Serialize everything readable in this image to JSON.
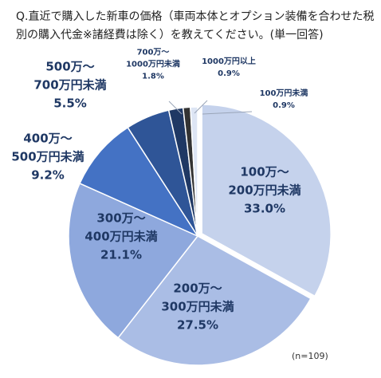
{
  "question": "Q.直近で購入した新車の価格（車両本体とオプション装備を合わせた税別の購入代金※諸経費は除く）を教えてください。(単一回答)",
  "note": "(n=109)",
  "chart_data": {
    "type": "pie",
    "title": "Q.直近で購入した新車の価格（車両本体とオプション装備を合わせた税別の購入代金※諸経費は除く）を教えてください。(単一回答)",
    "n": 109,
    "start": "12 o'clock",
    "direction": "clockwise",
    "slices": [
      {
        "label_lines": [
          "100万～",
          "200万円未満"
        ],
        "label": "100万～200万円未満",
        "percent_label": "33.0%",
        "value": 33.0,
        "color": "#c5d2ec",
        "text_color": "#1f3864"
      },
      {
        "label_lines": [
          "200万～",
          "300万円未満"
        ],
        "label": "200万～300万円未満",
        "percent_label": "27.5%",
        "value": 27.5,
        "color": "#aabde5",
        "text_color": "#1f3864"
      },
      {
        "label_lines": [
          "300万～",
          "400万円未満"
        ],
        "label": "300万～400万円未満",
        "percent_label": "21.1%",
        "value": 21.1,
        "color": "#8ea8dd",
        "text_color": "#1f3864"
      },
      {
        "label_lines": [
          "400万～",
          "500万円未満"
        ],
        "label": "400万～500万円未満",
        "percent_label": "9.2%",
        "value": 9.2,
        "color": "#4472c4",
        "text_color": "#1f3864"
      },
      {
        "label_lines": [
          "500万～",
          "700万円未満"
        ],
        "label": "500万～700万円未満",
        "percent_label": "5.5%",
        "value": 5.5,
        "color": "#2f5597",
        "text_color": "#1f3864"
      },
      {
        "label_lines": [
          "700万～",
          "1000万円未満"
        ],
        "label": "700万～1000万円未満",
        "percent_label": "1.8%",
        "value": 1.8,
        "color": "#1f3864",
        "text_color": "#1f3864"
      },
      {
        "label_lines": [
          "1000万円以上"
        ],
        "label": "1000万円以上",
        "percent_label": "0.9%",
        "value": 0.9,
        "color": "#333333",
        "text_color": "#1f3864"
      },
      {
        "label_lines": [
          "100万円未満"
        ],
        "label": "100万円未満",
        "percent_label": "0.9%",
        "value": 0.9,
        "color": "#dde5f4",
        "text_color": "#1f3864"
      }
    ]
  }
}
